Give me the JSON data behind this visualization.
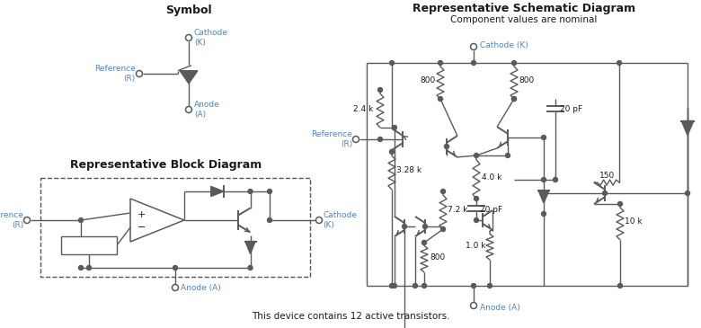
{
  "bg_color": "#ffffff",
  "text_color": "#1a1a1a",
  "label_color": "#4a86c8",
  "line_color": "#5a5a5a",
  "fig_width": 7.8,
  "fig_height": 3.65,
  "symbol_title": "Symbol",
  "block_title": "Representative Block Diagram",
  "schematic_title": "Representative Schematic Diagram",
  "schematic_subtitle": "Component values are nominal",
  "bottom_text": "This device contains 12 active transistors."
}
